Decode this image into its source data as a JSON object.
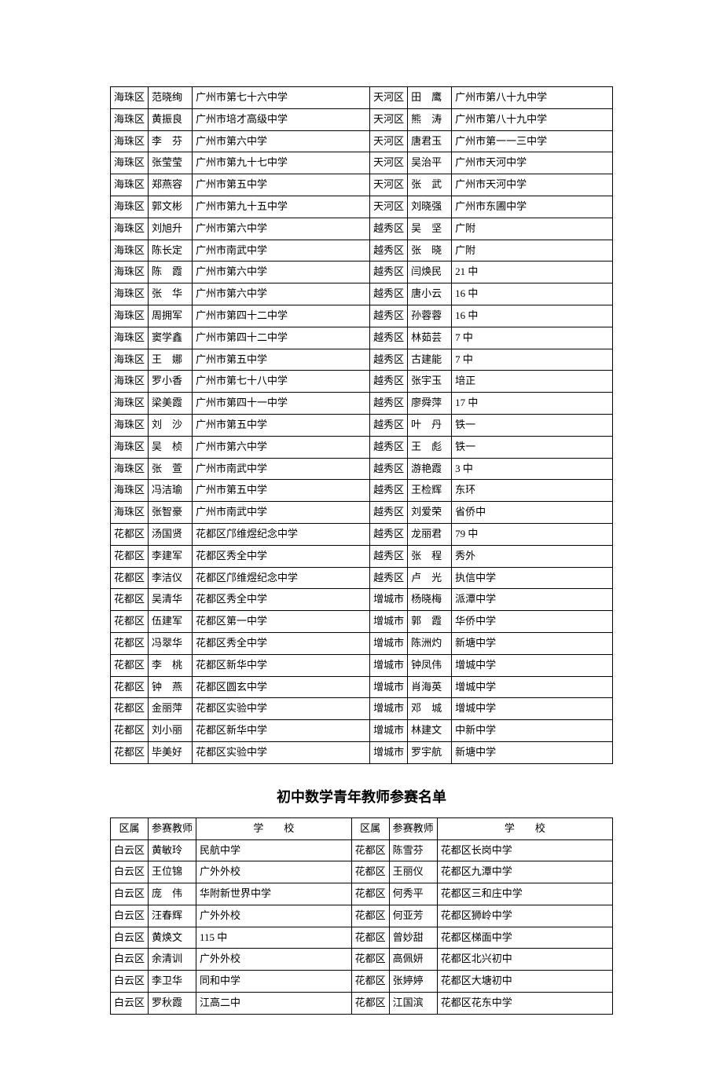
{
  "table1": {
    "rows": [
      [
        "海珠区",
        "范晓绚",
        "广州市第七十六中学",
        "天河区",
        "田　鹰",
        "广州市第八十九中学"
      ],
      [
        "海珠区",
        "黄振良",
        "广州市培才高级中学",
        "天河区",
        "熊　涛",
        "广州市第八十九中学"
      ],
      [
        "海珠区",
        "李　芬",
        "广州市第六中学",
        "天河区",
        "唐君玉",
        "广州市第一一三中学"
      ],
      [
        "海珠区",
        "张莹莹",
        "广州市第九十七中学",
        "天河区",
        "吴治平",
        "广州市天河中学"
      ],
      [
        "海珠区",
        "郑燕容",
        "广州市第五中学",
        "天河区",
        "张　武",
        "广州市天河中学"
      ],
      [
        "海珠区",
        "郭文彬",
        "广州市第九十五中学",
        "天河区",
        "刘晓强",
        "广州市东圃中学"
      ],
      [
        "海珠区",
        "刘旭升",
        "广州市第六中学",
        "越秀区",
        "吴　坚",
        "广附"
      ],
      [
        "海珠区",
        "陈长定",
        "广州市南武中学",
        "越秀区",
        "张　晓",
        "广附"
      ],
      [
        "海珠区",
        "陈　霞",
        "广州市第六中学",
        "越秀区",
        "闫焕民",
        "21 中"
      ],
      [
        "海珠区",
        "张　华",
        "广州市第六中学",
        "越秀区",
        "唐小云",
        "16 中"
      ],
      [
        "海珠区",
        "周拥军",
        "广州市第四十二中学",
        "越秀区",
        "孙蓉蓉",
        "16 中"
      ],
      [
        "海珠区",
        "窦学鑫",
        "广州市第四十二中学",
        "越秀区",
        "林茹芸",
        "7 中"
      ],
      [
        "海珠区",
        "王　娜",
        "广州市第五中学",
        "越秀区",
        "古建能",
        "7 中"
      ],
      [
        "海珠区",
        "罗小香",
        "广州市第七十八中学",
        "越秀区",
        "张宇玉",
        "培正"
      ],
      [
        "海珠区",
        "梁美霞",
        "广州市第四十一中学",
        "越秀区",
        "廖舜萍",
        "17 中"
      ],
      [
        "海珠区",
        "刘　沙",
        "广州市第五中学",
        "越秀区",
        "叶　丹",
        "铁一"
      ],
      [
        "海珠区",
        "吴　桢",
        "广州市第六中学",
        "越秀区",
        "王　彪",
        "铁一"
      ],
      [
        "海珠区",
        "张　萱",
        "广州市南武中学",
        "越秀区",
        "游艳霞",
        "3 中"
      ],
      [
        "海珠区",
        "冯洁瑜",
        "广州市第五中学",
        "越秀区",
        "王检辉",
        "东环"
      ],
      [
        "海珠区",
        "张智豪",
        "广州市南武中学",
        "越秀区",
        "刘爱荣",
        "省侨中"
      ],
      [
        "花都区",
        "汤国贤",
        "花都区邝维煜纪念中学",
        "越秀区",
        "龙丽君",
        "79 中"
      ],
      [
        "花都区",
        "李建军",
        "花都区秀全中学",
        "越秀区",
        "张　程",
        "秀外"
      ],
      [
        "花都区",
        "李洁仪",
        "花都区邝维煜纪念中学",
        "越秀区",
        "卢　光",
        "执信中学"
      ],
      [
        "花都区",
        "吴清华",
        "花都区秀全中学",
        "增城市",
        "杨晓梅",
        "派潭中学"
      ],
      [
        "花都区",
        "伍建军",
        "花都区第一中学",
        "增城市",
        "郭　霞",
        "华侨中学"
      ],
      [
        "花都区",
        "冯翠华",
        "花都区秀全中学",
        "增城市",
        "陈洲灼",
        "新塘中学"
      ],
      [
        "花都区",
        "李　桃",
        "花都区新华中学",
        "增城市",
        "钟凤伟",
        "增城中学"
      ],
      [
        "花都区",
        "钟　燕",
        "花都区圆玄中学",
        "增城市",
        "肖海英",
        "增城中学"
      ],
      [
        "花都区",
        "金丽萍",
        "花都区实验中学",
        "增城市",
        "邓　城",
        "增城中学"
      ],
      [
        "花都区",
        "刘小丽",
        "花都区新华中学",
        "增城市",
        "林建文",
        "中新中学"
      ],
      [
        "花都区",
        "毕美好",
        "花都区实验中学",
        "增城市",
        "罗宇航",
        "新塘中学"
      ]
    ]
  },
  "heading": "初中数学青年教师参赛名单",
  "table2": {
    "header": [
      "区属",
      "参赛教师",
      "学　　校",
      "区属",
      "参赛教师",
      "学　　校"
    ],
    "rows": [
      [
        "白云区",
        "黄敏玲",
        "民航中学",
        "花都区",
        "陈雪芬",
        "花都区长岗中学"
      ],
      [
        "白云区",
        "王位锦",
        "广外外校",
        "花都区",
        "王丽仪",
        "花都区九潭中学"
      ],
      [
        "白云区",
        "庞　伟",
        "华附新世界中学",
        "花都区",
        "何秀平",
        "花都区三和庄中学"
      ],
      [
        "白云区",
        "汪春辉",
        "广外外校",
        "花都区",
        "何亚芳",
        "花都区狮岭中学"
      ],
      [
        "白云区",
        "黄焕文",
        "115 中",
        "花都区",
        "曾妙甜",
        "花都区梯面中学"
      ],
      [
        "白云区",
        "余清训",
        "广外外校",
        "花都区",
        "高佩妍",
        "花都区北兴初中"
      ],
      [
        "白云区",
        "李卫华",
        "同和中学",
        "花都区",
        "张婷婷",
        "花都区大塘初中"
      ],
      [
        "白云区",
        "罗秋霞",
        "江高二中",
        "花都区",
        "江国滨",
        "花都区花东中学"
      ]
    ]
  }
}
